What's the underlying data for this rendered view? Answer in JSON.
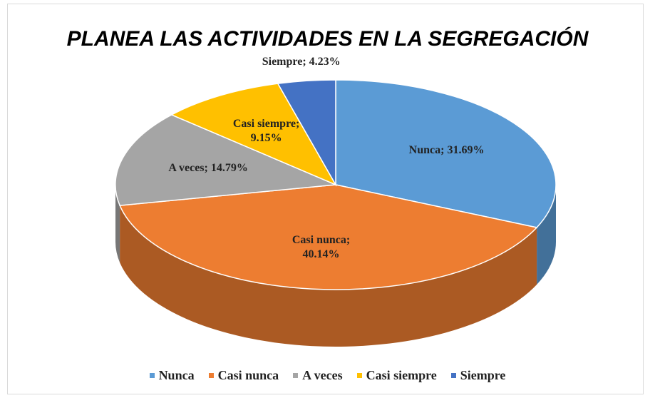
{
  "chart_data": {
    "type": "pie3d",
    "title": "PLANEA LAS ACTIVIDADES EN LA SEGREGACIÓN",
    "categories": [
      "Nunca",
      "Casi nunca",
      "A veces",
      "Casi siempre",
      "Siempre"
    ],
    "values": [
      31.69,
      40.14,
      14.79,
      9.15,
      4.23
    ],
    "value_labels": [
      "Nunca; 31.69%",
      "Casi nunca; 40.14%",
      "A veces; 14.79%",
      "Casi siempre; 9.15%",
      "Siempre; 4.23%"
    ],
    "colors": [
      "#5b9bd5",
      "#ed7d31",
      "#a5a5a5",
      "#ffc000",
      "#4472c4"
    ],
    "legend": "bottom"
  }
}
